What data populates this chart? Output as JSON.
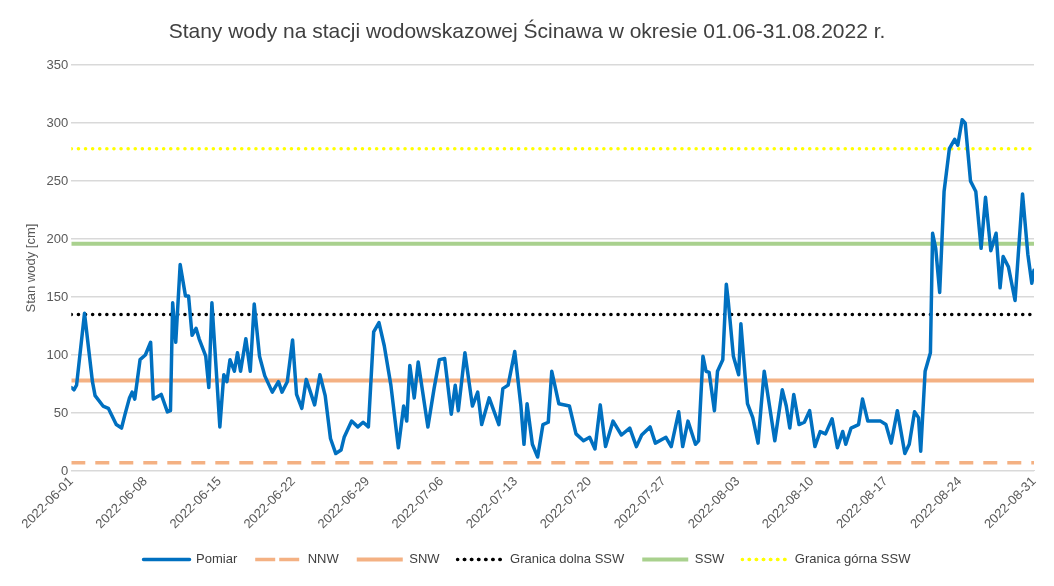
{
  "chart_data": {
    "type": "line",
    "title": "Stany wody na stacji wodowskazowej Ścinawa w okresie 01.06-31.08.2022 r.",
    "ylabel": "Stan wody [cm]",
    "xlim": [
      "2022-06-01",
      "2022-08-31"
    ],
    "xticks": [
      "2022-06-01",
      "2022-06-08",
      "2022-06-15",
      "2022-06-22",
      "2022-06-29",
      "2022-07-06",
      "2022-07-13",
      "2022-07-20",
      "2022-07-27",
      "2022-08-03",
      "2022-08-10",
      "2022-08-17",
      "2022-08-24",
      "2022-08-31"
    ],
    "ylim": [
      0,
      350
    ],
    "yticks": [
      0,
      50,
      100,
      150,
      200,
      250,
      300,
      350
    ],
    "grid": "y",
    "legend": "bottom",
    "marker": "none",
    "series": [
      {
        "name": "Pomiar",
        "color": "#0070c0",
        "line_style": "solid",
        "x": [
          "2022-06-01T00:00",
          "2022-06-01T06:00",
          "2022-06-01T12:00",
          "2022-06-02T06:00",
          "2022-06-03T00:00",
          "2022-06-03T06:00",
          "2022-06-04T00:00",
          "2022-06-04T12:00",
          "2022-06-05T06:00",
          "2022-06-05T18:00",
          "2022-06-06T02:00",
          "2022-06-06T12:00",
          "2022-06-06T18:00",
          "2022-06-07T00:00",
          "2022-06-07T12:00",
          "2022-06-08T00:00",
          "2022-06-08T12:00",
          "2022-06-08T18:00",
          "2022-06-09T12:00",
          "2022-06-10T02:00",
          "2022-06-10T09:00",
          "2022-06-10T14:00",
          "2022-06-10T21:00",
          "2022-06-11T07:00",
          "2022-06-11T19:00",
          "2022-06-12T02:00",
          "2022-06-12T10:00",
          "2022-06-12T19:00",
          "2022-06-13T02:00",
          "2022-06-13T17:00",
          "2022-06-14T00:00",
          "2022-06-14T07:00",
          "2022-06-14T17:00",
          "2022-06-15T01:00",
          "2022-06-15T10:00",
          "2022-06-15T17:00",
          "2022-06-16T00:00",
          "2022-06-16T10:00",
          "2022-06-16T17:00",
          "2022-06-17T00:00",
          "2022-06-17T12:00",
          "2022-06-17T22:00",
          "2022-06-18T07:00",
          "2022-06-18T19:00",
          "2022-06-19T07:00",
          "2022-06-20T00:00",
          "2022-06-20T14:00",
          "2022-06-20T22:00",
          "2022-06-21T10:00",
          "2022-06-21T22:00",
          "2022-06-22T07:00",
          "2022-06-22T19:00",
          "2022-06-23T05:00",
          "2022-06-24T00:00",
          "2022-06-24T12:00",
          "2022-06-25T00:00",
          "2022-06-25T12:00",
          "2022-06-26T00:00",
          "2022-06-26T12:00",
          "2022-06-26T19:00",
          "2022-06-27T12:00",
          "2022-06-28T02:00",
          "2022-06-28T14:00",
          "2022-06-29T02:00",
          "2022-06-29T14:00",
          "2022-06-30T02:00",
          "2022-06-30T14:00",
          "2022-07-01T05:00",
          "2022-07-01T22:00",
          "2022-07-02T10:00",
          "2022-07-02T17:00",
          "2022-07-03T00:00",
          "2022-07-03T10:00",
          "2022-07-03T19:00",
          "2022-07-04T17:00",
          "2022-07-05T07:00",
          "2022-07-05T19:00",
          "2022-07-06T07:00",
          "2022-07-06T22:00",
          "2022-07-07T07:00",
          "2022-07-07T14:00",
          "2022-07-08T05:00",
          "2022-07-08T22:00",
          "2022-07-09T10:00",
          "2022-07-09T19:00",
          "2022-07-10T12:00",
          "2022-07-11T10:00",
          "2022-07-11T19:00",
          "2022-07-12T07:00",
          "2022-07-12T22:00",
          "2022-07-13T12:00",
          "2022-07-13T19:00",
          "2022-07-14T02:00",
          "2022-07-14T14:00",
          "2022-07-15T02:00",
          "2022-07-15T14:00",
          "2022-07-16T02:00",
          "2022-07-16T10:00",
          "2022-07-17T02:00",
          "2022-07-18T02:00",
          "2022-07-18T17:00",
          "2022-07-19T10:00",
          "2022-07-20T00:00",
          "2022-07-20T12:00",
          "2022-07-21T00:00",
          "2022-07-21T12:00",
          "2022-07-22T05:00",
          "2022-07-23T00:00",
          "2022-07-23T19:00",
          "2022-07-24T10:00",
          "2022-07-24T22:00",
          "2022-07-25T17:00",
          "2022-07-26T05:00",
          "2022-07-27T05:00",
          "2022-07-27T17:00",
          "2022-07-28T10:00",
          "2022-07-28T19:00",
          "2022-07-29T07:00",
          "2022-07-30T00:00",
          "2022-07-30T07:00",
          "2022-07-30T17:00",
          "2022-07-31T00:00",
          "2022-07-31T07:00",
          "2022-07-31T19:00",
          "2022-08-01T02:00",
          "2022-08-01T14:00",
          "2022-08-01T22:00",
          "2022-08-02T02:00",
          "2022-08-02T14:00",
          "2022-08-03T02:00",
          "2022-08-03T07:00",
          "2022-08-03T17:00",
          "2022-08-03T22:00",
          "2022-08-04T10:00",
          "2022-08-04T22:00",
          "2022-08-05T05:00",
          "2022-08-05T12:00",
          "2022-08-06T00:00",
          "2022-08-06T12:00",
          "2022-08-07T05:00",
          "2022-08-07T14:00",
          "2022-08-07T22:00",
          "2022-08-08T07:00",
          "2022-08-08T19:00",
          "2022-08-09T07:00",
          "2022-08-09T19:00",
          "2022-08-10T07:00",
          "2022-08-10T19:00",
          "2022-08-11T07:00",
          "2022-08-11T22:00",
          "2022-08-12T10:00",
          "2022-08-12T22:00",
          "2022-08-13T05:00",
          "2022-08-13T17:00",
          "2022-08-14T10:00",
          "2022-08-14T19:00",
          "2022-08-15T07:00",
          "2022-08-16T12:00",
          "2022-08-17T00:00",
          "2022-08-17T12:00",
          "2022-08-18T02:00",
          "2022-08-18T19:00",
          "2022-08-19T05:00",
          "2022-08-19T17:00",
          "2022-08-20T02:00",
          "2022-08-20T07:00",
          "2022-08-20T17:00",
          "2022-08-21T05:00",
          "2022-08-21T10:00",
          "2022-08-21T17:00",
          "2022-08-22T02:00",
          "2022-08-22T12:00",
          "2022-08-23T00:00",
          "2022-08-23T12:00",
          "2022-08-23T19:00",
          "2022-08-24T05:00",
          "2022-08-24T12:00",
          "2022-08-25T00:00",
          "2022-08-25T12:00",
          "2022-08-26T00:00",
          "2022-08-26T10:00",
          "2022-08-26T22:00",
          "2022-08-27T10:00",
          "2022-08-27T19:00",
          "2022-08-28T02:00",
          "2022-08-28T14:00",
          "2022-08-29T05:00",
          "2022-08-29T22:00",
          "2022-08-30T10:00",
          "2022-08-30T19:00",
          "2022-08-31T00:00"
        ],
        "values": [
          72,
          70,
          74,
          136,
          77,
          65,
          56,
          54,
          40,
          37,
          49,
          63,
          68,
          62,
          96,
          100,
          111,
          62,
          66,
          51,
          52,
          145,
          111,
          178,
          151,
          151,
          117,
          123,
          114,
          99,
          72,
          145,
          86,
          38,
          83,
          77,
          96,
          86,
          102,
          86,
          114,
          86,
          144,
          99,
          82,
          68,
          77,
          68,
          77,
          113,
          66,
          54,
          79,
          57,
          83,
          65,
          28,
          15,
          18,
          29,
          43,
          38,
          42,
          38,
          120,
          128,
          108,
          74,
          20,
          56,
          43,
          91,
          63,
          94,
          38,
          71,
          96,
          97,
          49,
          74,
          52,
          102,
          56,
          68,
          40,
          63,
          40,
          71,
          74,
          103,
          56,
          23,
          58,
          23,
          12,
          40,
          42,
          86,
          58,
          56,
          32,
          26,
          29,
          19,
          57,
          21,
          43,
          31,
          37,
          21,
          31,
          38,
          24,
          29,
          21,
          51,
          21,
          43,
          23,
          26,
          99,
          86,
          85,
          52,
          86,
          96,
          161,
          148,
          99,
          83,
          127,
          80,
          58,
          46,
          24,
          56,
          86,
          56,
          26,
          70,
          56,
          37,
          66,
          40,
          42,
          52,
          21,
          34,
          32,
          45,
          20,
          34,
          23,
          37,
          40,
          62,
          43,
          43,
          40,
          24,
          52,
          15,
          23,
          51,
          46,
          17,
          86,
          102,
          205,
          192,
          154,
          241,
          278,
          286,
          281,
          303,
          300,
          250,
          241,
          192,
          236,
          190,
          205,
          158,
          185,
          176,
          147,
          239,
          187,
          162,
          173
        ]
      }
    ],
    "ref_lines": [
      {
        "axis": "y",
        "value": 7,
        "label": "NNW",
        "color": "#f4b183",
        "line_style": "dashed"
      },
      {
        "axis": "y",
        "value": 78,
        "label": "SNW",
        "color": "#f4b183",
        "line_style": "solid"
      },
      {
        "axis": "y",
        "value": 135,
        "label": "Granica dolna SSW",
        "color": "#000000",
        "line_style": "dotted"
      },
      {
        "axis": "y",
        "value": 196,
        "label": "SSW",
        "color": "#a9d18e",
        "line_style": "solid"
      },
      {
        "axis": "y",
        "value": 278,
        "label": "Granica górna SSW",
        "color": "#ffff00",
        "line_style": "dotted"
      }
    ]
  }
}
